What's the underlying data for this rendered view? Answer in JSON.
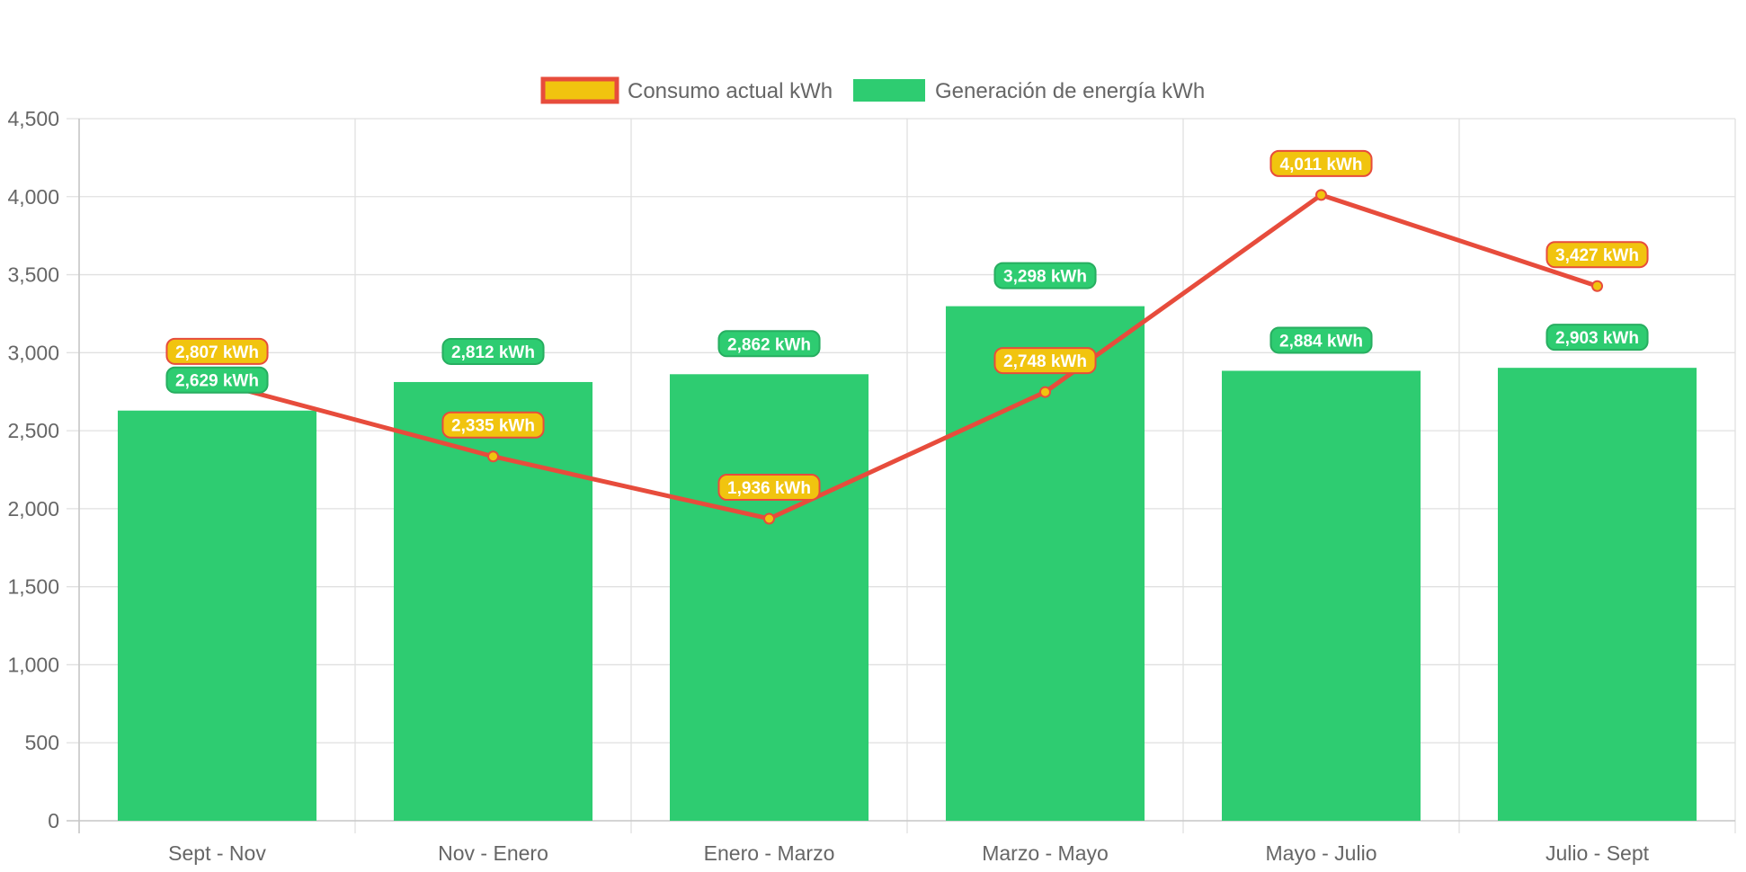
{
  "chart_data": {
    "type": "bar",
    "categories": [
      "Sept - Nov",
      "Nov - Enero",
      "Enero - Marzo",
      "Marzo - Mayo",
      "Mayo - Julio",
      "Julio - Sept"
    ],
    "series": [
      {
        "name": "Consumo actual kWh",
        "type": "line",
        "color": "#e74c3c",
        "point_fill": "#f1c40f",
        "label_fill": "#f1c40f",
        "label_border": "#e74c3c",
        "values": [
          2807,
          2335,
          1936,
          2748,
          4011,
          3427
        ],
        "labels": [
          "2,807 kWh",
          "2,335 kWh",
          "1,936 kWh",
          "2,748 kWh",
          "4,011 kWh",
          "3,427 kWh"
        ]
      },
      {
        "name": "Generación de energía kWh",
        "type": "bar",
        "color": "#2ecc71",
        "label_fill": "#2ecc71",
        "label_border": "#27ae60",
        "values": [
          2629,
          2812,
          2862,
          3298,
          2884,
          2903
        ],
        "labels": [
          "2,629 kWh",
          "2,812 kWh",
          "2,862 kWh",
          "3,298 kWh",
          "2,884 kWh",
          "2,903 kWh"
        ]
      }
    ],
    "ylim": [
      0,
      4500
    ],
    "y_ticks": [
      0,
      500,
      1000,
      1500,
      2000,
      2500,
      3000,
      3500,
      4000,
      4500
    ],
    "y_tick_labels": [
      "0",
      "500",
      "1,000",
      "1,500",
      "2,000",
      "2,500",
      "3,000",
      "3,500",
      "4,000",
      "4,500"
    ],
    "grid": true,
    "legend_position": "top"
  }
}
